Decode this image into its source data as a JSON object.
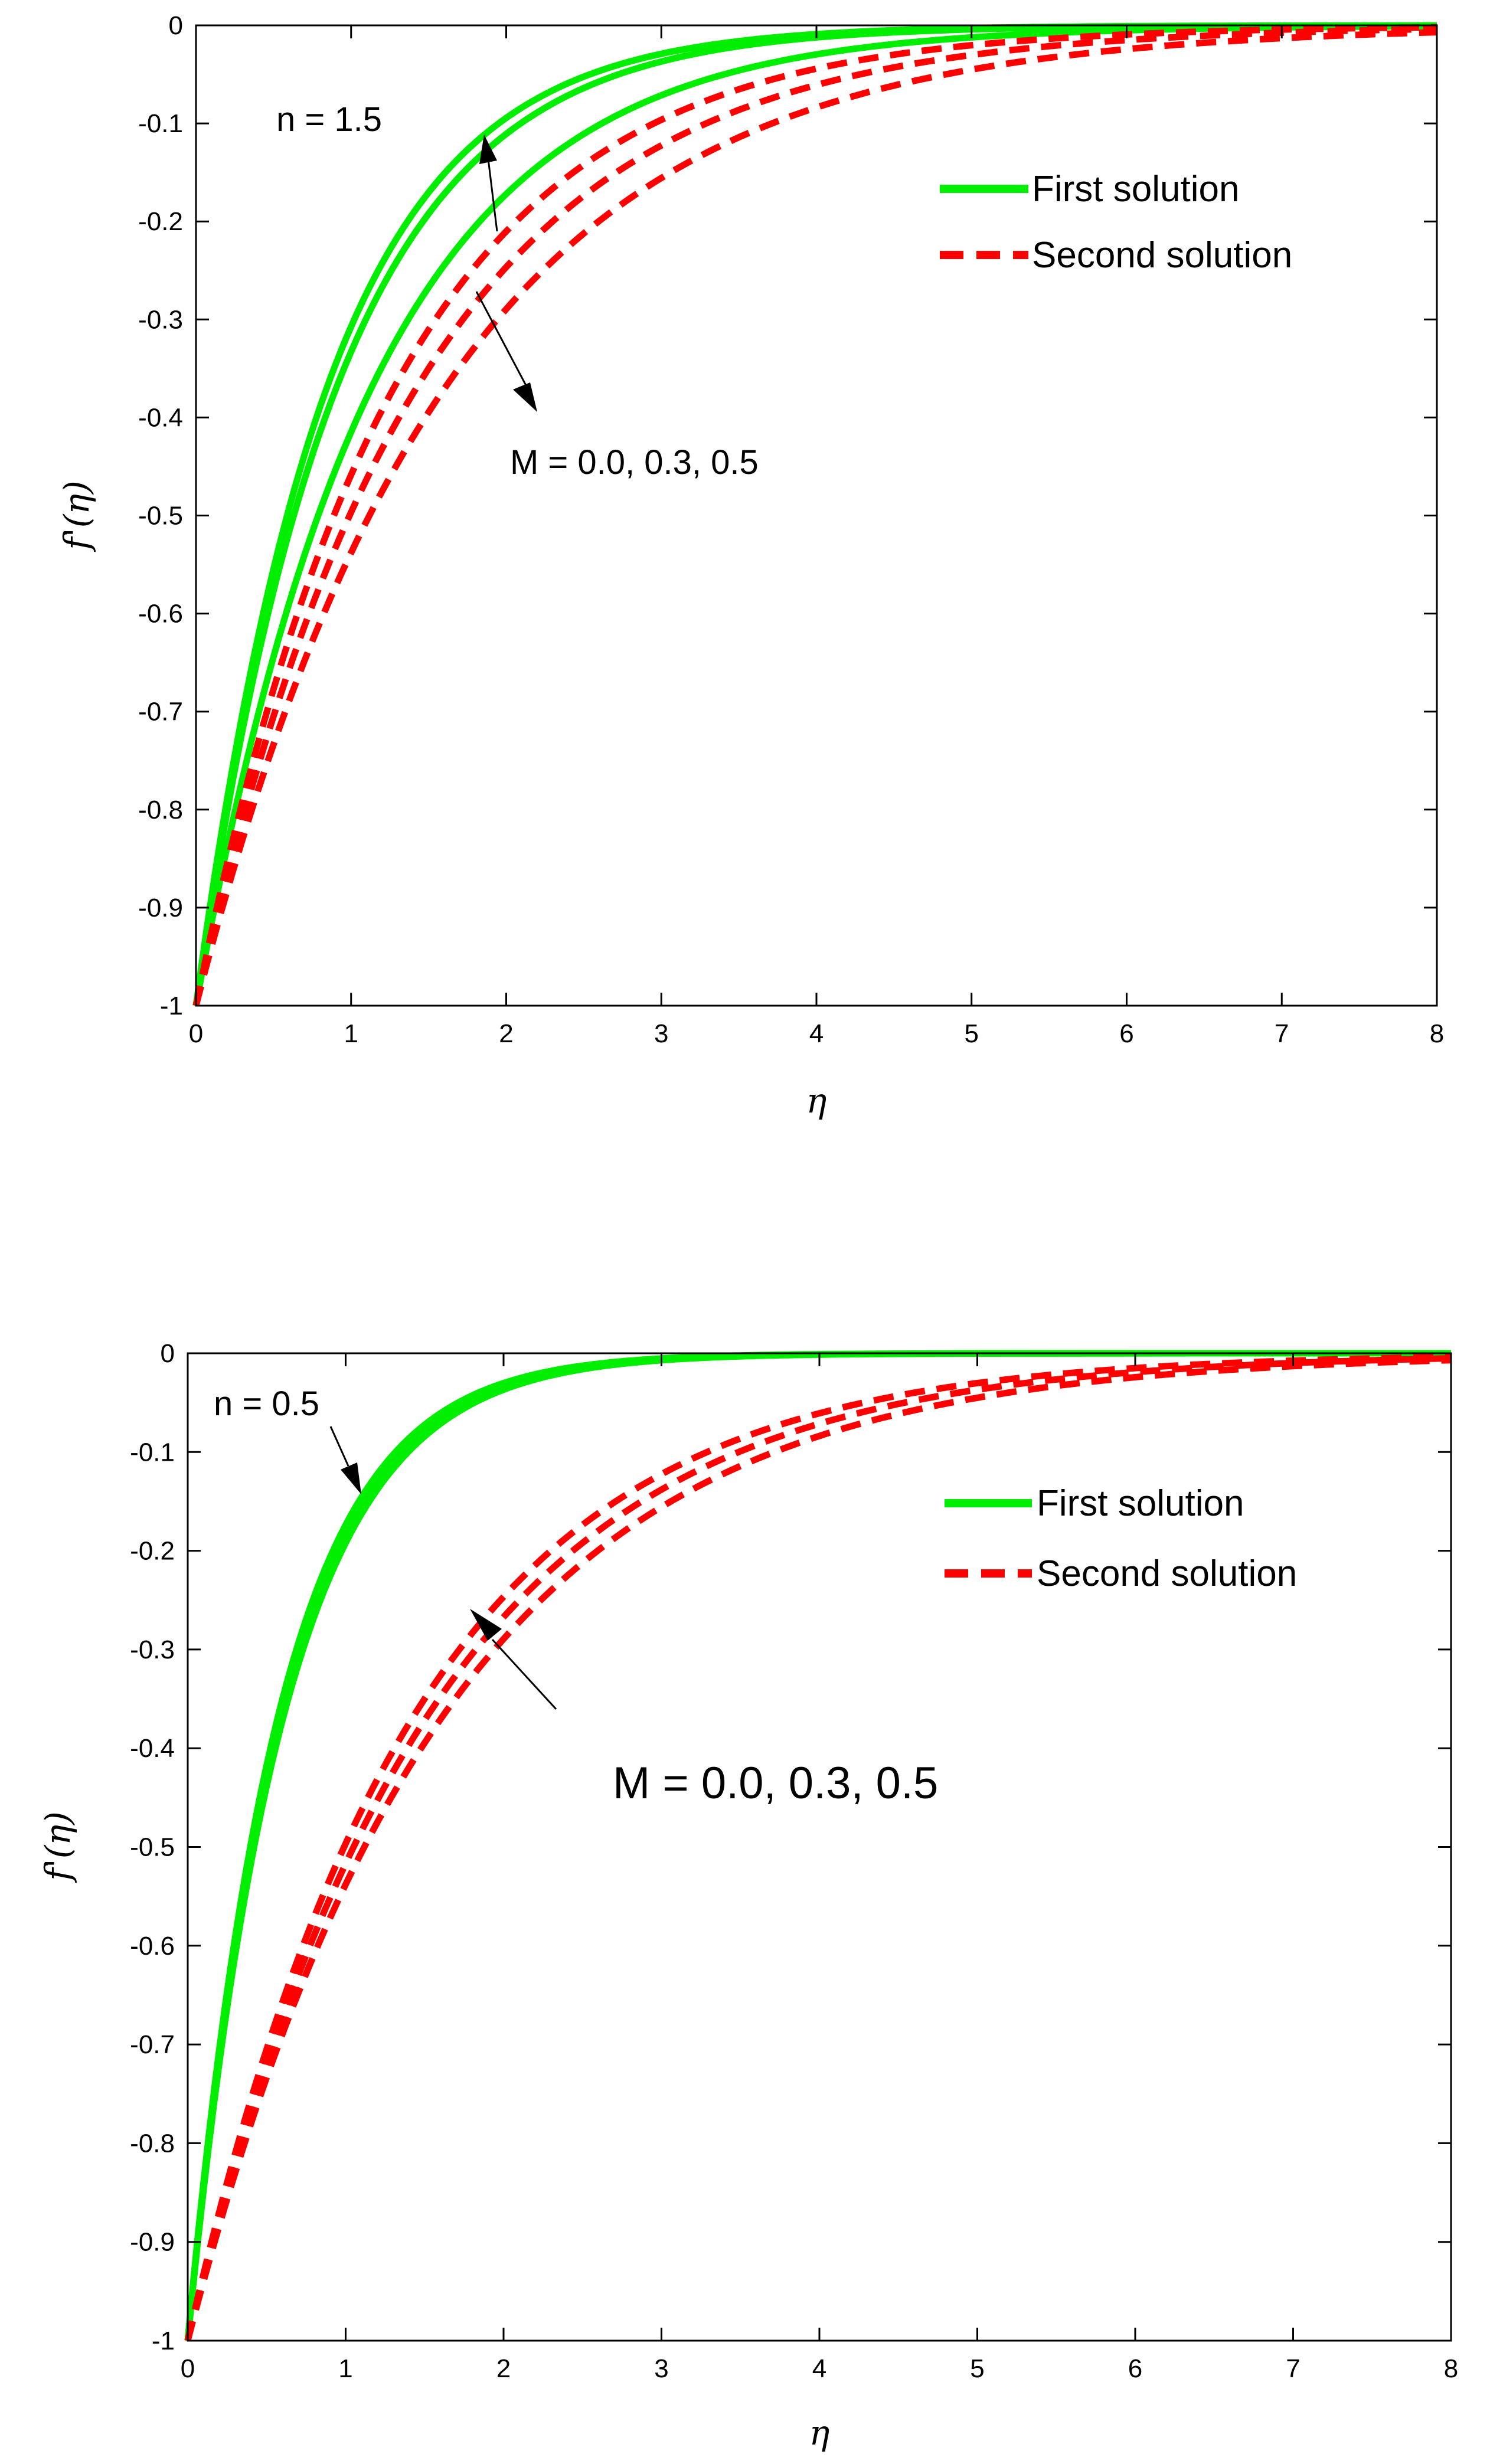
{
  "figure": {
    "colors": {
      "first_solution": "#00ee00",
      "second_solution": "#ff0000",
      "axes": "#000000",
      "background": "#ffffff"
    }
  },
  "chart_data": [
    {
      "type": "line",
      "title": "",
      "xlabel": "η",
      "ylabel": "f'(η)",
      "xlim": [
        0,
        8
      ],
      "ylim": [
        -1,
        0
      ],
      "xticks": [
        "0",
        "1",
        "2",
        "3",
        "4",
        "5",
        "6",
        "7",
        "8"
      ],
      "yticks": [
        "0",
        "-0.1",
        "-0.2",
        "-0.3",
        "-0.4",
        "-0.5",
        "-0.6",
        "-0.7",
        "-0.8",
        "-0.9",
        "-1"
      ],
      "legend": {
        "position": "top-right",
        "entries": [
          {
            "label": "First solution",
            "style": "solid",
            "color": "#00ee00"
          },
          {
            "label": "Second solution",
            "style": "dashed",
            "color": "#ff0000"
          }
        ]
      },
      "annotations": [
        {
          "text": "n = 1.5",
          "x": 0.5,
          "y": -0.07
        },
        {
          "text": "M = 0.0, 0.3, 0.5",
          "x": 2.2,
          "y": -0.43,
          "arrow_from": [
            1.8,
            -0.25
          ],
          "arrow_to": [
            2.2,
            -0.38
          ],
          "arrow_from_2": [
            2.2,
            -0.14
          ],
          "arrow_to_2": [
            1.9,
            -0.07
          ]
        }
      ],
      "series": [
        {
          "name": "First solution M=0.0",
          "style": "solid",
          "color": "#00ee00",
          "decay_rate": 1.18,
          "x": [
            0,
            0.5,
            1,
            1.5,
            2,
            2.5,
            3,
            4,
            5,
            6,
            7,
            8
          ],
          "y": [
            -1,
            -0.554,
            -0.307,
            -0.17,
            -0.094,
            -0.052,
            -0.029,
            -0.009,
            -0.003,
            -0.001,
            0,
            0
          ]
        },
        {
          "name": "First solution M=0.3",
          "style": "solid",
          "color": "#00ee00",
          "decay_rate": 1.1,
          "x": [
            0,
            0.5,
            1,
            1.5,
            2,
            2.5,
            3,
            4,
            5,
            6,
            7,
            8
          ],
          "y": [
            -1,
            -0.577,
            -0.333,
            -0.192,
            -0.111,
            -0.064,
            -0.037,
            -0.012,
            -0.004,
            -0.001,
            0,
            0
          ]
        },
        {
          "name": "First solution M=0.5",
          "style": "solid",
          "color": "#00ee00",
          "decay_rate": 0.88,
          "x": [
            0,
            0.5,
            1,
            1.5,
            2,
            2.5,
            3,
            4,
            5,
            6,
            7,
            8
          ],
          "y": [
            -1,
            -0.644,
            -0.415,
            -0.267,
            -0.172,
            -0.111,
            -0.071,
            -0.03,
            -0.012,
            -0.005,
            -0.002,
            -0.001
          ]
        },
        {
          "name": "Second solution M=0.0",
          "style": "dashed",
          "color": "#ff0000",
          "decay_rate": 0.78,
          "x": [
            0,
            0.5,
            1,
            1.5,
            2,
            2.5,
            3,
            4,
            5,
            6,
            7,
            8
          ],
          "y": [
            -1,
            -0.677,
            -0.458,
            -0.31,
            -0.21,
            -0.142,
            -0.096,
            -0.044,
            -0.02,
            -0.009,
            -0.004,
            -0.002
          ]
        },
        {
          "name": "Second solution M=0.3",
          "style": "dashed",
          "color": "#ff0000",
          "decay_rate": 0.7,
          "x": [
            0,
            0.5,
            1,
            1.5,
            2,
            2.5,
            3,
            4,
            5,
            6,
            7,
            8
          ],
          "y": [
            -1,
            -0.705,
            -0.497,
            -0.35,
            -0.247,
            -0.174,
            -0.122,
            -0.061,
            -0.03,
            -0.015,
            -0.007,
            -0.004
          ]
        },
        {
          "name": "Second solution M=0.5",
          "style": "dashed",
          "color": "#ff0000",
          "decay_rate": 0.62,
          "x": [
            0,
            0.5,
            1,
            1.5,
            2,
            2.5,
            3,
            4,
            5,
            6,
            7,
            8
          ],
          "y": [
            -1,
            -0.733,
            -0.538,
            -0.395,
            -0.289,
            -0.212,
            -0.156,
            -0.084,
            -0.045,
            -0.024,
            -0.013,
            -0.007
          ]
        }
      ]
    },
    {
      "type": "line",
      "title": "",
      "xlabel": "η",
      "ylabel": "f'(η)",
      "xlim": [
        0,
        8
      ],
      "ylim": [
        -1,
        0
      ],
      "xticks": [
        "0",
        "1",
        "2",
        "3",
        "4",
        "5",
        "6",
        "7",
        "8"
      ],
      "yticks": [
        "0",
        "-0.1",
        "-0.2",
        "-0.3",
        "-0.4",
        "-0.5",
        "-0.6",
        "-0.7",
        "-0.8",
        "-0.9",
        "-1"
      ],
      "legend": {
        "position": "top-right",
        "entries": [
          {
            "label": "First solution",
            "style": "solid",
            "color": "#00ee00"
          },
          {
            "label": "Second solution",
            "style": "dashed",
            "color": "#ff0000"
          }
        ]
      },
      "annotations": [
        {
          "text": "n = 0.5",
          "x": 0.55,
          "y": -0.03,
          "arrow_from": [
            0.92,
            -0.07
          ],
          "arrow_to": [
            1.15,
            -0.155
          ]
        },
        {
          "text": "M = 0.0, 0.3, 0.5",
          "x": 4.4,
          "y": -0.45,
          "arrow_from": [
            2.4,
            -0.36
          ],
          "arrow_to": [
            1.8,
            -0.225
          ]
        }
      ],
      "series": [
        {
          "name": "First solution M=0.0",
          "style": "solid",
          "color": "#00ee00",
          "decay_rate": 1.75,
          "x": [
            0,
            0.25,
            0.5,
            1,
            1.5,
            2,
            3,
            4,
            5,
            6,
            7,
            8
          ],
          "y": [
            -1,
            -0.646,
            -0.417,
            -0.174,
            -0.072,
            -0.03,
            -0.005,
            -0.001,
            0,
            0,
            0,
            0
          ]
        },
        {
          "name": "First solution M=0.3",
          "style": "solid",
          "color": "#00ee00",
          "decay_rate": 1.7,
          "x": [
            0,
            0.25,
            0.5,
            1,
            1.5,
            2,
            3,
            4,
            5,
            6,
            7,
            8
          ],
          "y": [
            -1,
            -0.654,
            -0.427,
            -0.183,
            -0.078,
            -0.033,
            -0.006,
            -0.001,
            0,
            0,
            0,
            0
          ]
        },
        {
          "name": "First solution M=0.5",
          "style": "solid",
          "color": "#00ee00",
          "decay_rate": 1.65,
          "x": [
            0,
            0.25,
            0.5,
            1,
            1.5,
            2,
            3,
            4,
            5,
            6,
            7,
            8
          ],
          "y": [
            -1,
            -0.662,
            -0.438,
            -0.192,
            -0.084,
            -0.037,
            -0.007,
            -0.001,
            0,
            0,
            0,
            0
          ]
        },
        {
          "name": "Second solution M=0.0",
          "style": "dashed",
          "color": "#ff0000",
          "decay_rate": 0.7,
          "x": [
            0,
            0.5,
            1,
            1.5,
            2,
            2.5,
            3,
            4,
            5,
            6,
            7,
            8
          ],
          "y": [
            -1,
            -0.705,
            -0.497,
            -0.35,
            -0.247,
            -0.174,
            -0.122,
            -0.061,
            -0.03,
            -0.015,
            -0.007,
            -0.004
          ]
        },
        {
          "name": "Second solution M=0.3",
          "style": "dashed",
          "color": "#ff0000",
          "decay_rate": 0.66,
          "x": [
            0,
            0.5,
            1,
            1.5,
            2,
            2.5,
            3,
            4,
            5,
            6,
            7,
            8
          ],
          "y": [
            -1,
            -0.719,
            -0.517,
            -0.372,
            -0.267,
            -0.192,
            -0.138,
            -0.071,
            -0.037,
            -0.019,
            -0.01,
            -0.005
          ]
        },
        {
          "name": "Second solution M=0.5",
          "style": "dashed",
          "color": "#ff0000",
          "decay_rate": 0.62,
          "x": [
            0,
            0.5,
            1,
            1.5,
            2,
            2.5,
            3,
            4,
            5,
            6,
            7,
            8
          ],
          "y": [
            -1,
            -0.733,
            -0.538,
            -0.395,
            -0.289,
            -0.212,
            -0.156,
            -0.084,
            -0.045,
            -0.024,
            -0.013,
            -0.007
          ]
        }
      ]
    }
  ]
}
